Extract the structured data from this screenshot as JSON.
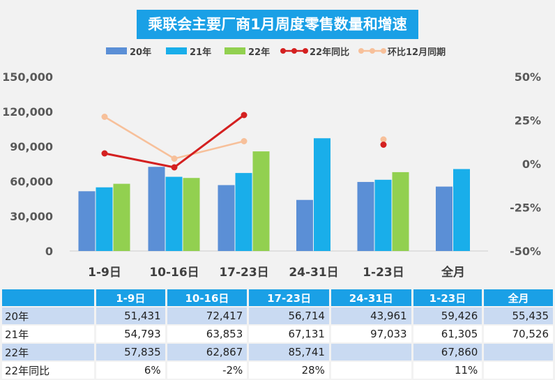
{
  "title": "乘联会主要厂商1月周度零售数量和增速",
  "colors": {
    "s20": "#5b8fd6",
    "s21": "#19aeea",
    "s22": "#92d050",
    "yoy22": "#d42020",
    "mom": "#f7c09a",
    "header_bg": "#1aa0e6"
  },
  "chart_data": {
    "type": "bar",
    "categories": [
      "1-9日",
      "10-16日",
      "17-23日",
      "24-31日",
      "1-23日",
      "全月"
    ],
    "series": [
      {
        "name": "20年",
        "kind": "bar",
        "values": [
          51431,
          72417,
          56714,
          43961,
          59426,
          55435
        ]
      },
      {
        "name": "21年",
        "kind": "bar",
        "values": [
          54793,
          63853,
          67131,
          97033,
          61305,
          70526
        ]
      },
      {
        "name": "22年",
        "kind": "bar",
        "values": [
          57835,
          62867,
          85741,
          null,
          67860,
          null
        ]
      },
      {
        "name": "22年同比",
        "kind": "line",
        "axis": "right",
        "values": [
          6,
          -2,
          28,
          null,
          11,
          null
        ]
      },
      {
        "name": "环比12月同期",
        "kind": "line",
        "axis": "right",
        "values": [
          27,
          3,
          13,
          null,
          14,
          null
        ]
      }
    ],
    "left_axis": {
      "min": 0,
      "max": 150000,
      "ticks": [
        "0",
        "30,000",
        "60,000",
        "90,000",
        "120,000",
        "150,000"
      ]
    },
    "right_axis": {
      "min": -50,
      "max": 50,
      "ticks": [
        "-50%",
        "-25%",
        "0%",
        "25%",
        "50%"
      ]
    },
    "legend": "top",
    "grid": false
  },
  "table": {
    "headers": [
      "1-9日",
      "10-16日",
      "17-23日",
      "24-31日",
      "1-23日",
      "全月"
    ],
    "rows": [
      {
        "label": "20年",
        "cells": [
          "51,431",
          "72,417",
          "56,714",
          "43,961",
          "59,426",
          "55,435"
        ]
      },
      {
        "label": "21年",
        "cells": [
          "54,793",
          "63,853",
          "67,131",
          "97,033",
          "61,305",
          "70,526"
        ]
      },
      {
        "label": "22年",
        "cells": [
          "57,835",
          "62,867",
          "85,741",
          "",
          "67,860",
          ""
        ]
      },
      {
        "label": "22年同比",
        "cells": [
          "6%",
          "-2%",
          "28%",
          "",
          "11%",
          ""
        ]
      }
    ]
  }
}
